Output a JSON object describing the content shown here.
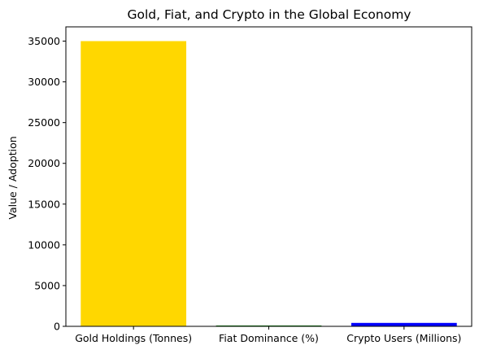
{
  "chart_data": {
    "type": "bar",
    "title": "Gold, Fiat, and Crypto in the Global Economy",
    "xlabel": "",
    "ylabel": "Value / Adoption",
    "categories": [
      "Gold Holdings (Tonnes)",
      "Fiat Dominance (%)",
      "Crypto Users (Millions)"
    ],
    "values": [
      35000,
      100,
      420
    ],
    "colors": [
      "#ffd700",
      "#008000",
      "#0000ff"
    ],
    "ylim": [
      0,
      36750
    ],
    "yticks": [
      0,
      5000,
      10000,
      15000,
      20000,
      25000,
      30000,
      35000
    ],
    "grid": false,
    "legend": "none"
  }
}
